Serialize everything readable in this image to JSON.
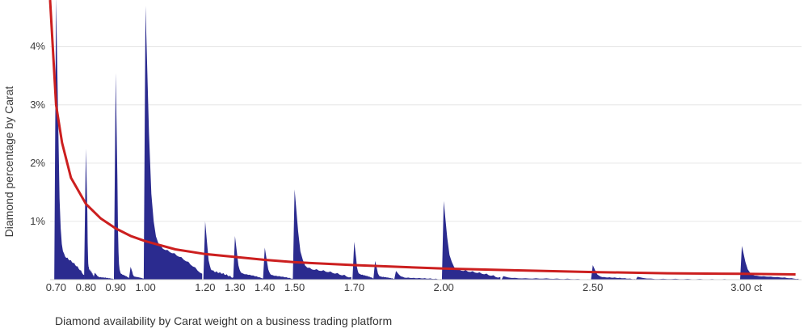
{
  "caption": "Diamond availability by Carat weight on a business trading platform",
  "chart_data": {
    "type": "area",
    "ylabel": "Diamond percentage by Carat",
    "xlim": [
      0.68,
      3.2
    ],
    "ylim": [
      0,
      4.8
    ],
    "y_ticks": [
      {
        "value": 1,
        "label": "1%"
      },
      {
        "value": 2,
        "label": "2%"
      },
      {
        "value": 3,
        "label": "3%"
      },
      {
        "value": 4,
        "label": "4%"
      }
    ],
    "x_ticks": [
      {
        "value": 0.7,
        "label": "0.70"
      },
      {
        "value": 0.8,
        "label": "0.80"
      },
      {
        "value": 0.9,
        "label": "0.90"
      },
      {
        "value": 1.0,
        "label": "1.00"
      },
      {
        "value": 1.2,
        "label": "1.20"
      },
      {
        "value": 1.3,
        "label": "1.30"
      },
      {
        "value": 1.4,
        "label": "1.40"
      },
      {
        "value": 1.5,
        "label": "1.50"
      },
      {
        "value": 1.7,
        "label": "1.70"
      },
      {
        "value": 2.0,
        "label": "2.00"
      },
      {
        "value": 2.5,
        "label": "2.50"
      },
      {
        "value": 3.0,
        "label": "3.00 ct"
      }
    ],
    "grid": true,
    "colors": {
      "area": "#2b2b8f",
      "trend": "#cc1f1f",
      "grid": "#e6e6e6"
    },
    "series": [
      {
        "kind": "area",
        "peaks": [
          {
            "x": 0.7,
            "y": 4.85,
            "base": 0.4
          },
          {
            "x": 0.8,
            "y": 2.25,
            "base": 0.18
          },
          {
            "x": 0.83,
            "y": 0.12,
            "base": 0.04
          },
          {
            "x": 0.9,
            "y": 3.55,
            "base": 0.1
          },
          {
            "x": 0.95,
            "y": 0.22,
            "base": 0.05
          },
          {
            "x": 1.0,
            "y": 4.7,
            "base": 0.55
          },
          {
            "x": 1.2,
            "y": 1.0,
            "base": 0.14
          },
          {
            "x": 1.3,
            "y": 0.75,
            "base": 0.1
          },
          {
            "x": 1.4,
            "y": 0.55,
            "base": 0.07
          },
          {
            "x": 1.5,
            "y": 1.55,
            "base": 0.18
          },
          {
            "x": 1.7,
            "y": 0.65,
            "base": 0.09
          },
          {
            "x": 1.77,
            "y": 0.32,
            "base": 0.05
          },
          {
            "x": 1.84,
            "y": 0.15,
            "base": 0.03
          },
          {
            "x": 2.0,
            "y": 1.35,
            "base": 0.16
          },
          {
            "x": 2.2,
            "y": 0.06,
            "base": 0.02
          },
          {
            "x": 2.5,
            "y": 0.25,
            "base": 0.04
          },
          {
            "x": 2.65,
            "y": 0.05,
            "base": 0.01
          },
          {
            "x": 3.0,
            "y": 0.58,
            "base": 0.06
          }
        ]
      },
      {
        "kind": "line",
        "points": [
          [
            0.68,
            4.8
          ],
          [
            0.7,
            3.0
          ],
          [
            0.72,
            2.35
          ],
          [
            0.75,
            1.75
          ],
          [
            0.8,
            1.3
          ],
          [
            0.85,
            1.05
          ],
          [
            0.9,
            0.88
          ],
          [
            0.95,
            0.75
          ],
          [
            1.0,
            0.66
          ],
          [
            1.1,
            0.52
          ],
          [
            1.2,
            0.44
          ],
          [
            1.3,
            0.39
          ],
          [
            1.4,
            0.34
          ],
          [
            1.5,
            0.3
          ],
          [
            1.7,
            0.25
          ],
          [
            2.0,
            0.19
          ],
          [
            2.25,
            0.16
          ],
          [
            2.5,
            0.13
          ],
          [
            2.75,
            0.11
          ],
          [
            3.0,
            0.1
          ],
          [
            3.18,
            0.09
          ]
        ]
      }
    ]
  }
}
